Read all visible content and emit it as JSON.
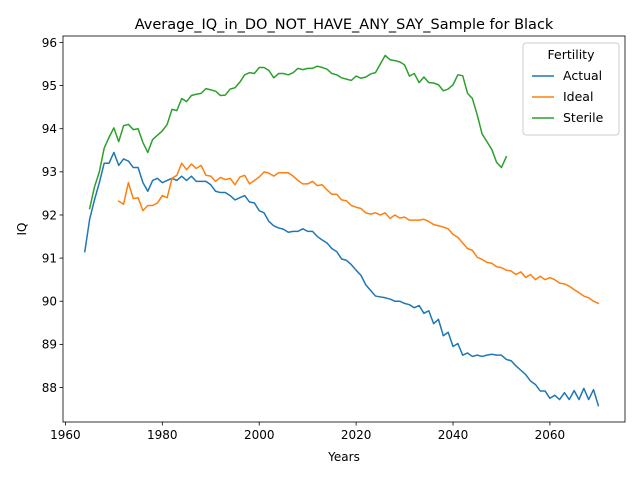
{
  "chart_data": {
    "type": "line",
    "title": "Average_IQ_in_DO_NOT_HAVE_ANY_SAY_Sample for Black",
    "xlabel": "Years",
    "ylabel": "IQ",
    "xlim": [
      1959.5,
      2075.5
    ],
    "ylim": [
      87.2,
      96.15
    ],
    "xticks": [
      1960,
      1980,
      2000,
      2020,
      2040,
      2060
    ],
    "yticks": [
      88,
      89,
      90,
      91,
      92,
      93,
      94,
      95,
      96
    ],
    "grid": false,
    "legend": {
      "title": "Fertility",
      "placement": "upper right"
    },
    "series": [
      {
        "name": "Actual",
        "color": "#1f77b4",
        "x": [
          1964,
          1965,
          1966,
          1967,
          1968,
          1969,
          1970,
          1971,
          1972,
          1973,
          1974,
          1975,
          1976,
          1977,
          1978,
          1979,
          1980,
          1981,
          1982,
          1983,
          1984,
          1985,
          1986,
          1987,
          1988,
          1989,
          1990,
          1991,
          1992,
          1993,
          1994,
          1995,
          1996,
          1997,
          1998,
          1999,
          2000,
          2001,
          2002,
          2003,
          2004,
          2005,
          2006,
          2007,
          2008,
          2009,
          2010,
          2011,
          2012,
          2013,
          2014,
          2015,
          2016,
          2017,
          2018,
          2019,
          2020,
          2021,
          2022,
          2023,
          2024,
          2025,
          2026,
          2027,
          2028,
          2029,
          2030,
          2031,
          2032,
          2033,
          2034,
          2035,
          2036,
          2037,
          2038,
          2039,
          2040,
          2041,
          2042,
          2043,
          2044,
          2045,
          2046,
          2047,
          2048,
          2049,
          2050,
          2051,
          2052,
          2053,
          2054,
          2055,
          2056,
          2057,
          2058,
          2059,
          2060,
          2061,
          2062,
          2063,
          2064,
          2065,
          2066,
          2067,
          2068,
          2069,
          2070
        ],
        "y": [
          91.15,
          91.9,
          92.35,
          92.75,
          93.2,
          93.2,
          93.45,
          93.15,
          93.3,
          93.25,
          93.1,
          93.1,
          92.75,
          92.55,
          92.8,
          92.85,
          92.75,
          92.8,
          92.85,
          92.8,
          92.9,
          92.8,
          92.9,
          92.78,
          92.78,
          92.78,
          92.7,
          92.55,
          92.52,
          92.52,
          92.45,
          92.35,
          92.4,
          92.45,
          92.3,
          92.28,
          92.1,
          92.05,
          91.85,
          91.75,
          91.7,
          91.67,
          91.6,
          91.62,
          91.62,
          91.68,
          91.62,
          91.62,
          91.5,
          91.42,
          91.35,
          91.22,
          91.15,
          90.98,
          90.95,
          90.85,
          90.72,
          90.6,
          90.38,
          90.25,
          90.12,
          90.1,
          90.08,
          90.05,
          90.0,
          90.0,
          89.95,
          89.92,
          89.85,
          89.9,
          89.72,
          89.78,
          89.48,
          89.58,
          89.2,
          89.28,
          88.95,
          89.02,
          88.75,
          88.8,
          88.72,
          88.75,
          88.72,
          88.75,
          88.77,
          88.75,
          88.75,
          88.65,
          88.62,
          88.5,
          88.4,
          88.3,
          88.15,
          88.07,
          87.92,
          87.92,
          87.75,
          87.82,
          87.72,
          87.88,
          87.72,
          87.93,
          87.72,
          87.98,
          87.72,
          87.95,
          87.58
        ]
      },
      {
        "name": "Ideal",
        "color": "#ff7f0e",
        "x": [
          1971,
          1972,
          1973,
          1974,
          1975,
          1976,
          1977,
          1978,
          1979,
          1980,
          1981,
          1982,
          1983,
          1984,
          1985,
          1986,
          1987,
          1988,
          1989,
          1990,
          1991,
          1992,
          1993,
          1994,
          1995,
          1996,
          1997,
          1998,
          1999,
          2000,
          2001,
          2002,
          2003,
          2004,
          2005,
          2006,
          2007,
          2008,
          2009,
          2010,
          2011,
          2012,
          2013,
          2014,
          2015,
          2016,
          2017,
          2018,
          2019,
          2020,
          2021,
          2022,
          2023,
          2024,
          2025,
          2026,
          2027,
          2028,
          2029,
          2030,
          2031,
          2032,
          2033,
          2034,
          2035,
          2036,
          2037,
          2038,
          2039,
          2040,
          2041,
          2042,
          2043,
          2044,
          2045,
          2046,
          2047,
          2048,
          2049,
          2050,
          2051,
          2052,
          2053,
          2054,
          2055,
          2056,
          2057,
          2058,
          2059,
          2060,
          2061,
          2062,
          2063,
          2064,
          2065,
          2066,
          2067,
          2068,
          2069,
          2070
        ],
        "y": [
          92.32,
          92.25,
          92.75,
          92.38,
          92.4,
          92.1,
          92.22,
          92.22,
          92.28,
          92.45,
          92.4,
          92.85,
          92.92,
          93.2,
          93.05,
          93.18,
          93.08,
          93.15,
          92.92,
          92.9,
          92.78,
          92.87,
          92.82,
          92.85,
          92.7,
          92.88,
          92.92,
          92.72,
          92.8,
          92.88,
          93.0,
          92.97,
          92.9,
          92.98,
          92.98,
          92.98,
          92.9,
          92.8,
          92.72,
          92.72,
          92.78,
          92.68,
          92.7,
          92.58,
          92.48,
          92.48,
          92.35,
          92.33,
          92.22,
          92.18,
          92.15,
          92.05,
          92.02,
          92.05,
          92.0,
          92.05,
          91.92,
          92.0,
          91.93,
          91.95,
          91.88,
          91.88,
          91.88,
          91.9,
          91.85,
          91.78,
          91.75,
          91.72,
          91.68,
          91.55,
          91.48,
          91.35,
          91.22,
          91.18,
          91.02,
          90.97,
          90.9,
          90.88,
          90.8,
          90.78,
          90.72,
          90.7,
          90.62,
          90.68,
          90.55,
          90.62,
          90.5,
          90.58,
          90.5,
          90.55,
          90.5,
          90.42,
          90.4,
          90.35,
          90.27,
          90.2,
          90.12,
          90.08,
          90.0,
          89.95
        ],
        "note": ""
      },
      {
        "name": "Sterile",
        "color": "#2ca02c",
        "x": [
          1965,
          1966,
          1967,
          1968,
          1969,
          1970,
          1971,
          1972,
          1973,
          1974,
          1975,
          1976,
          1977,
          1978,
          1979,
          1980,
          1981,
          1982,
          1983,
          1984,
          1985,
          1986,
          1987,
          1988,
          1989,
          1990,
          1991,
          1992,
          1993,
          1994,
          1995,
          1996,
          1997,
          1998,
          1999,
          2000,
          2001,
          2002,
          2003,
          2004,
          2005,
          2006,
          2007,
          2008,
          2009,
          2010,
          2011,
          2012,
          2013,
          2014,
          2015,
          2016,
          2017,
          2018,
          2019,
          2020,
          2021,
          2022,
          2023,
          2024,
          2025,
          2026,
          2027,
          2028,
          2029,
          2030,
          2031,
          2032,
          2033,
          2034,
          2035,
          2036,
          2037,
          2038,
          2039,
          2040,
          2041,
          2042,
          2043,
          2044,
          2045,
          2046,
          2047,
          2048,
          2049,
          2050,
          2051
        ],
        "y": [
          92.15,
          92.65,
          93.0,
          93.55,
          93.8,
          94.02,
          93.7,
          94.07,
          94.1,
          93.98,
          94.0,
          93.68,
          93.45,
          93.75,
          93.85,
          93.95,
          94.1,
          94.45,
          94.42,
          94.7,
          94.63,
          94.77,
          94.8,
          94.82,
          94.93,
          94.9,
          94.87,
          94.77,
          94.78,
          94.92,
          94.95,
          95.08,
          95.25,
          95.3,
          95.28,
          95.42,
          95.42,
          95.35,
          95.18,
          95.28,
          95.28,
          95.25,
          95.3,
          95.4,
          95.37,
          95.4,
          95.4,
          95.45,
          95.42,
          95.38,
          95.28,
          95.25,
          95.18,
          95.15,
          95.12,
          95.22,
          95.17,
          95.2,
          95.27,
          95.3,
          95.5,
          95.7,
          95.6,
          95.58,
          95.55,
          95.48,
          95.22,
          95.28,
          95.07,
          95.2,
          95.07,
          95.06,
          95.02,
          94.88,
          94.92,
          95.02,
          95.25,
          95.23,
          94.82,
          94.7,
          94.32,
          93.88,
          93.7,
          93.52,
          93.22,
          93.1,
          93.35
        ]
      }
    ]
  }
}
